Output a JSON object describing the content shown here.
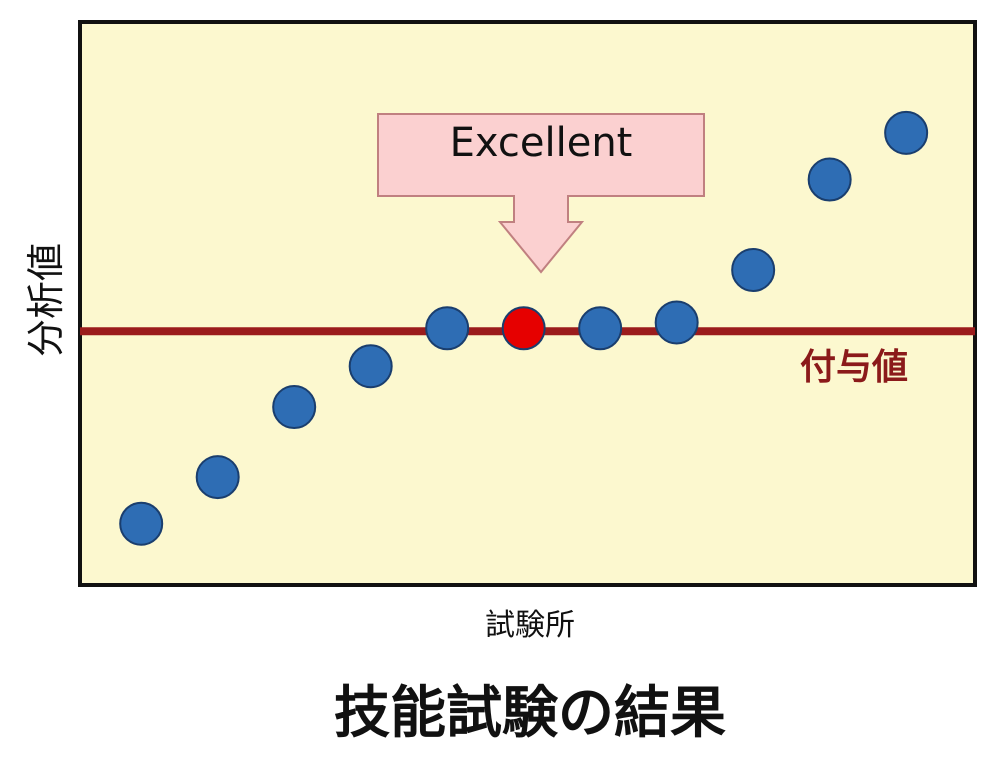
{
  "chart_data": {
    "type": "scatter",
    "title": "技能試験の結果",
    "xlabel": "試験所",
    "ylabel": "分析値",
    "x": [
      1,
      2,
      3,
      4,
      5,
      6,
      7,
      8,
      9,
      10,
      11
    ],
    "y": [
      -3.3,
      -2.5,
      -1.3,
      -0.6,
      0.05,
      0.05,
      0.05,
      0.15,
      1.05,
      2.6,
      3.4
    ],
    "point_colors": [
      "#2e6db4",
      "#2e6db4",
      "#2e6db4",
      "#2e6db4",
      "#2e6db4",
      "#e60000",
      "#2e6db4",
      "#2e6db4",
      "#2e6db4",
      "#2e6db4",
      "#2e6db4"
    ],
    "xlim": [
      0.2,
      11.9
    ],
    "ylim": [
      -4.35,
      5.3
    ],
    "grid": false,
    "reference_line": {
      "label": "付与値",
      "value": 0,
      "color": "#9b1c1c"
    },
    "annotation": {
      "text": "Excellent",
      "target_index": 5,
      "fill": "#fbd0d0",
      "stroke": "#c08080"
    },
    "plot_background": "#fcf8cf"
  }
}
